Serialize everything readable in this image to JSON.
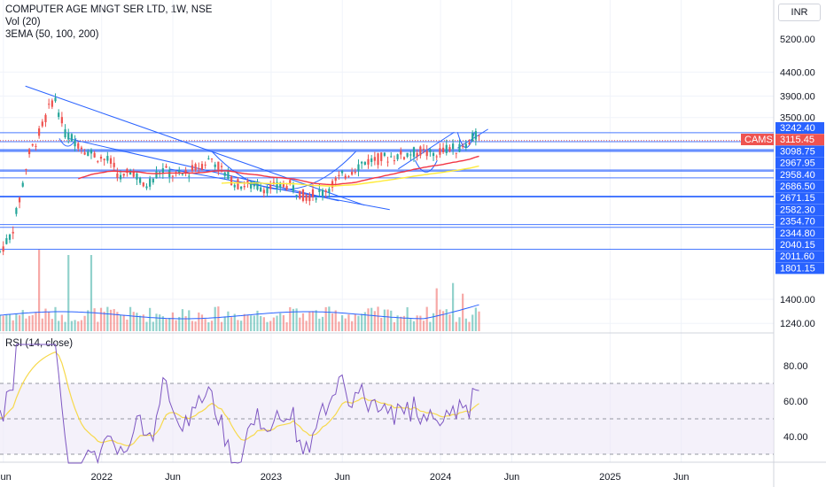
{
  "header": {
    "title": "COMPUTER AGE MNGT SER LTD, 1W, NSE",
    "vol_label": "Vol (20)",
    "ema_label": "3EMA (50, 100, 200)",
    "currency": "INR"
  },
  "rsi": {
    "label": "RSI (14, close)"
  },
  "chart_data": [
    {
      "type": "line",
      "title": "COMPUTER AGE MNGT SER LTD, 1W, NSE",
      "symbol_tag": "CAMS",
      "last_price": 3115.45,
      "price_axis_ticks": [
        5200.0,
        4400.0,
        3900.0,
        3500.0,
        1400.0,
        1240.0
      ],
      "level_labels": [
        3242.4,
        3098.75,
        2967.95,
        2958.4,
        2686.5,
        2671.15,
        2582.3,
        2354.7,
        2344.8,
        2040.15,
        2011.6,
        1801.15
      ],
      "x_ticks": [
        "Jun",
        "2022",
        "Jun",
        "2023",
        "Jun",
        "2024",
        "Jun",
        "2025",
        "Jun"
      ],
      "colors": {
        "up": "#26a69a",
        "down": "#ef5350",
        "level": "#2962ff",
        "ema": "#f23645",
        "ema2": "#ffeb3b",
        "ema3": "#2962ff"
      }
    },
    {
      "type": "line",
      "title": "RSI (14, close)",
      "y_ticks": [
        80.0,
        60.0,
        40.0
      ],
      "colors": {
        "line": "#7e57c2",
        "band": "#ede7f6",
        "ma": "#f7d94c"
      }
    }
  ]
}
